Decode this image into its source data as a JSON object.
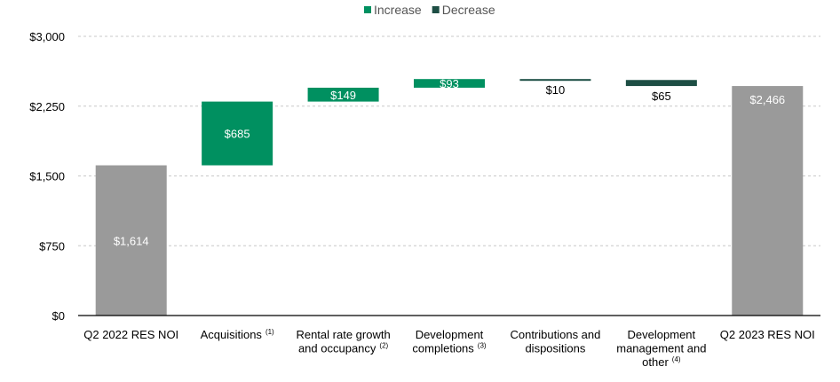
{
  "chart_data": {
    "type": "bar",
    "subtype": "waterfall",
    "title": "",
    "xlabel": "",
    "ylabel": "",
    "ylim": [
      0,
      3000
    ],
    "yticks": [
      0,
      750,
      1500,
      2250,
      3000
    ],
    "ytick_labels": [
      "$0",
      "$750",
      "$1,500",
      "$2,250",
      "$3,000"
    ],
    "grid": true,
    "legend_position": "top-center",
    "legend": [
      {
        "name": "Increase",
        "color": "#009060"
      },
      {
        "name": "Decrease",
        "color": "#1d4e44"
      }
    ],
    "colors": {
      "total": "#9a9a9a",
      "increase": "#009060",
      "decrease": "#1d4e44"
    },
    "bars": [
      {
        "lines": [
          "Q2 2022 RES NOI"
        ],
        "sup": "",
        "kind": "total",
        "start": 0,
        "end": 1614,
        "label": "$1,614"
      },
      {
        "lines": [
          "Acquisitions"
        ],
        "sup": "(1)",
        "kind": "increase",
        "start": 1614,
        "end": 2299,
        "label": "$685"
      },
      {
        "lines": [
          "Rental rate growth",
          "and occupancy"
        ],
        "sup": "(2)",
        "kind": "increase",
        "start": 2299,
        "end": 2448,
        "label": "$149"
      },
      {
        "lines": [
          "Development",
          "completions"
        ],
        "sup": "(3)",
        "kind": "increase",
        "start": 2448,
        "end": 2541,
        "label": "$93"
      },
      {
        "lines": [
          "Contributions and",
          "dispositions"
        ],
        "sup": "",
        "kind": "decrease",
        "start": 2541,
        "end": 2531,
        "label": "$10"
      },
      {
        "lines": [
          "Development",
          "management and",
          "other"
        ],
        "sup": "(4)",
        "kind": "decrease",
        "start": 2531,
        "end": 2466,
        "label": "$65"
      },
      {
        "lines": [
          "Q2 2023 RES NOI"
        ],
        "sup": "",
        "kind": "total",
        "start": 0,
        "end": 2466,
        "label": "$2,466"
      }
    ]
  }
}
